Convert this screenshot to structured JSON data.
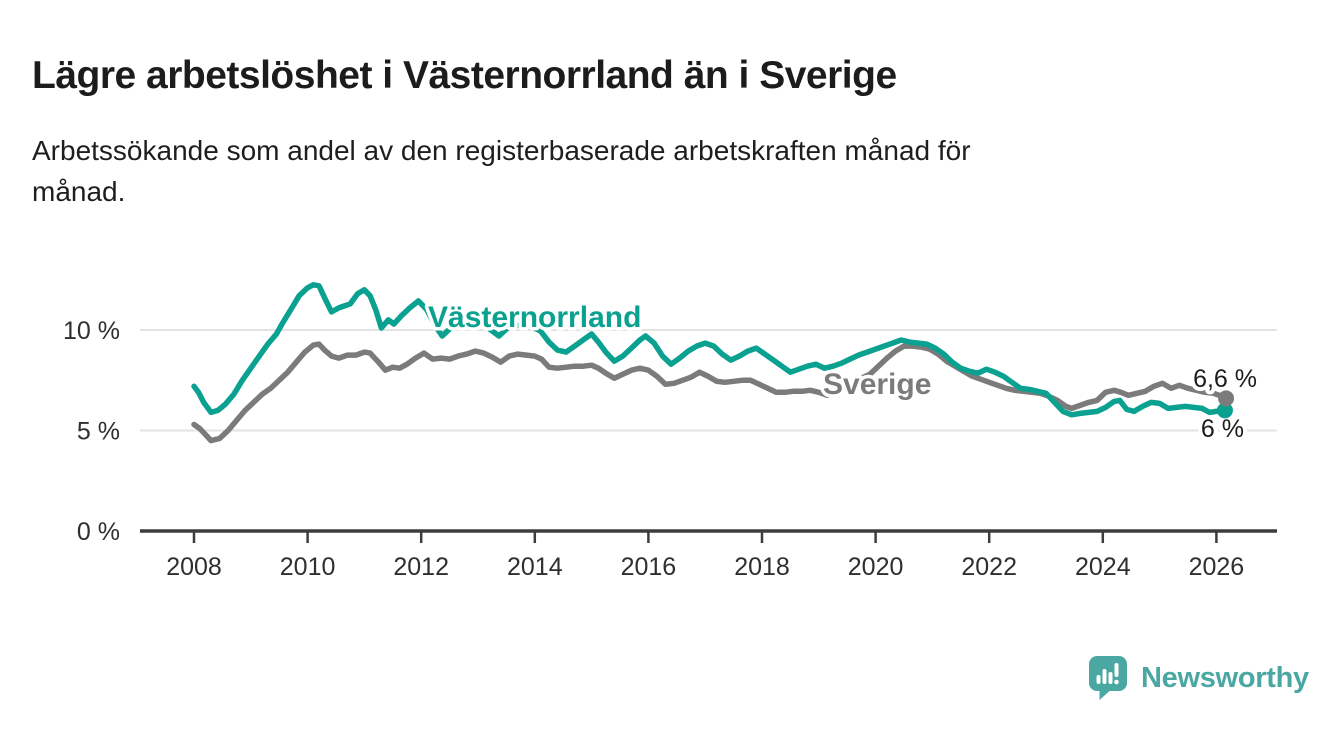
{
  "header": {
    "title": "Lägre arbetslöshet i Västernorrland än i Sverige",
    "subtitle_lines": [
      "Arbetssökande som andel av den registerbaserade arbetskraften månad för",
      "månad."
    ]
  },
  "chart_data": {
    "type": "line",
    "title": "Lägre arbetslöshet i Västernorrland än i Sverige",
    "xlabel": "",
    "ylabel": "",
    "unit": "%",
    "grid": "horizontal",
    "legend_position": "inline-labels",
    "x_range": [
      2007.1,
      2027.0
    ],
    "ylim": [
      0,
      12.5
    ],
    "x_ticks": [
      2008,
      2010,
      2012,
      2014,
      2016,
      2018,
      2020,
      2022,
      2024,
      2026
    ],
    "y_ticks": [
      {
        "value": 0,
        "label": "0 %"
      },
      {
        "value": 5,
        "label": "5 %"
      },
      {
        "value": 10,
        "label": "10 %"
      }
    ],
    "series": [
      {
        "id": "vasternorrland",
        "name": "Västernorrland",
        "color": "#0aa191",
        "end_label": "6 %",
        "end_value": 6.0,
        "points": [
          [
            2008.0,
            7.2
          ],
          [
            2008.08,
            6.9
          ],
          [
            2008.17,
            6.4
          ],
          [
            2008.3,
            5.9
          ],
          [
            2008.42,
            6.0
          ],
          [
            2008.55,
            6.3
          ],
          [
            2008.7,
            6.8
          ],
          [
            2008.85,
            7.5
          ],
          [
            2009.0,
            8.1
          ],
          [
            2009.15,
            8.7
          ],
          [
            2009.3,
            9.3
          ],
          [
            2009.45,
            9.8
          ],
          [
            2009.55,
            10.3
          ],
          [
            2009.7,
            11.0
          ],
          [
            2009.85,
            11.7
          ],
          [
            2010.0,
            12.1
          ],
          [
            2010.1,
            12.25
          ],
          [
            2010.2,
            12.2
          ],
          [
            2010.3,
            11.6
          ],
          [
            2010.42,
            10.9
          ],
          [
            2010.55,
            11.1
          ],
          [
            2010.65,
            11.2
          ],
          [
            2010.75,
            11.3
          ],
          [
            2010.88,
            11.8
          ],
          [
            2011.0,
            12.0
          ],
          [
            2011.1,
            11.7
          ],
          [
            2011.2,
            11.0
          ],
          [
            2011.3,
            10.1
          ],
          [
            2011.42,
            10.5
          ],
          [
            2011.52,
            10.3
          ],
          [
            2011.65,
            10.7
          ],
          [
            2011.8,
            11.1
          ],
          [
            2011.95,
            11.45
          ],
          [
            2012.1,
            11.0
          ],
          [
            2012.25,
            10.2
          ],
          [
            2012.37,
            9.7
          ],
          [
            2012.5,
            10.05
          ],
          [
            2012.65,
            10.3
          ],
          [
            2012.8,
            10.25
          ],
          [
            2012.95,
            10.35
          ],
          [
            2013.1,
            10.25
          ],
          [
            2013.25,
            9.95
          ],
          [
            2013.37,
            9.7
          ],
          [
            2013.5,
            10.05
          ],
          [
            2013.65,
            10.25
          ],
          [
            2013.8,
            10.2
          ],
          [
            2013.95,
            10.15
          ],
          [
            2014.1,
            9.95
          ],
          [
            2014.25,
            9.4
          ],
          [
            2014.4,
            9.0
          ],
          [
            2014.55,
            8.9
          ],
          [
            2014.7,
            9.2
          ],
          [
            2014.85,
            9.5
          ],
          [
            2015.0,
            9.8
          ],
          [
            2015.12,
            9.4
          ],
          [
            2015.25,
            8.9
          ],
          [
            2015.4,
            8.45
          ],
          [
            2015.55,
            8.7
          ],
          [
            2015.7,
            9.1
          ],
          [
            2015.85,
            9.5
          ],
          [
            2015.95,
            9.7
          ],
          [
            2016.1,
            9.35
          ],
          [
            2016.25,
            8.7
          ],
          [
            2016.4,
            8.3
          ],
          [
            2016.55,
            8.6
          ],
          [
            2016.7,
            8.95
          ],
          [
            2016.85,
            9.2
          ],
          [
            2017.0,
            9.35
          ],
          [
            2017.15,
            9.2
          ],
          [
            2017.3,
            8.8
          ],
          [
            2017.45,
            8.5
          ],
          [
            2017.6,
            8.7
          ],
          [
            2017.75,
            8.95
          ],
          [
            2017.9,
            9.1
          ],
          [
            2018.05,
            8.8
          ],
          [
            2018.2,
            8.5
          ],
          [
            2018.35,
            8.2
          ],
          [
            2018.5,
            7.9
          ],
          [
            2018.65,
            8.05
          ],
          [
            2018.8,
            8.2
          ],
          [
            2018.95,
            8.3
          ],
          [
            2019.1,
            8.1
          ],
          [
            2019.25,
            8.2
          ],
          [
            2019.4,
            8.35
          ],
          [
            2019.55,
            8.55
          ],
          [
            2019.7,
            8.75
          ],
          [
            2019.85,
            8.9
          ],
          [
            2020.0,
            9.05
          ],
          [
            2020.15,
            9.2
          ],
          [
            2020.3,
            9.35
          ],
          [
            2020.45,
            9.5
          ],
          [
            2020.6,
            9.4
          ],
          [
            2020.75,
            9.35
          ],
          [
            2020.9,
            9.3
          ],
          [
            2021.05,
            9.1
          ],
          [
            2021.2,
            8.8
          ],
          [
            2021.35,
            8.4
          ],
          [
            2021.5,
            8.1
          ],
          [
            2021.65,
            7.95
          ],
          [
            2021.8,
            7.85
          ],
          [
            2021.95,
            8.05
          ],
          [
            2022.1,
            7.9
          ],
          [
            2022.25,
            7.7
          ],
          [
            2022.4,
            7.4
          ],
          [
            2022.55,
            7.1
          ],
          [
            2022.7,
            7.05
          ],
          [
            2022.85,
            6.95
          ],
          [
            2023.0,
            6.85
          ],
          [
            2023.15,
            6.4
          ],
          [
            2023.3,
            5.95
          ],
          [
            2023.45,
            5.78
          ],
          [
            2023.6,
            5.85
          ],
          [
            2023.75,
            5.9
          ],
          [
            2023.9,
            5.95
          ],
          [
            2024.05,
            6.15
          ],
          [
            2024.2,
            6.45
          ],
          [
            2024.3,
            6.5
          ],
          [
            2024.42,
            6.05
          ],
          [
            2024.55,
            5.95
          ],
          [
            2024.7,
            6.2
          ],
          [
            2024.85,
            6.4
          ],
          [
            2025.0,
            6.35
          ],
          [
            2025.15,
            6.1
          ],
          [
            2025.3,
            6.15
          ],
          [
            2025.45,
            6.2
          ],
          [
            2025.6,
            6.15
          ],
          [
            2025.75,
            6.1
          ],
          [
            2025.88,
            5.9
          ],
          [
            2026.0,
            5.95
          ],
          [
            2026.15,
            6.0
          ]
        ]
      },
      {
        "id": "sverige",
        "name": "Sverige",
        "color": "#7b7b7b",
        "end_label": "6,6 %",
        "end_value": 6.6,
        "points": [
          [
            2008.0,
            5.3
          ],
          [
            2008.1,
            5.1
          ],
          [
            2008.2,
            4.8
          ],
          [
            2008.3,
            4.5
          ],
          [
            2008.45,
            4.6
          ],
          [
            2008.6,
            5.0
          ],
          [
            2008.75,
            5.5
          ],
          [
            2008.9,
            6.0
          ],
          [
            2009.05,
            6.4
          ],
          [
            2009.2,
            6.8
          ],
          [
            2009.35,
            7.1
          ],
          [
            2009.5,
            7.5
          ],
          [
            2009.65,
            7.9
          ],
          [
            2009.8,
            8.4
          ],
          [
            2009.95,
            8.9
          ],
          [
            2010.1,
            9.25
          ],
          [
            2010.2,
            9.3
          ],
          [
            2010.3,
            9.0
          ],
          [
            2010.42,
            8.7
          ],
          [
            2010.55,
            8.6
          ],
          [
            2010.7,
            8.75
          ],
          [
            2010.85,
            8.75
          ],
          [
            2011.0,
            8.9
          ],
          [
            2011.1,
            8.85
          ],
          [
            2011.25,
            8.4
          ],
          [
            2011.37,
            8.0
          ],
          [
            2011.5,
            8.15
          ],
          [
            2011.62,
            8.1
          ],
          [
            2011.75,
            8.3
          ],
          [
            2011.9,
            8.6
          ],
          [
            2012.05,
            8.85
          ],
          [
            2012.2,
            8.55
          ],
          [
            2012.35,
            8.6
          ],
          [
            2012.5,
            8.55
          ],
          [
            2012.65,
            8.7
          ],
          [
            2012.8,
            8.8
          ],
          [
            2012.95,
            8.95
          ],
          [
            2013.1,
            8.85
          ],
          [
            2013.25,
            8.65
          ],
          [
            2013.4,
            8.4
          ],
          [
            2013.55,
            8.7
          ],
          [
            2013.7,
            8.8
          ],
          [
            2013.85,
            8.75
          ],
          [
            2014.0,
            8.7
          ],
          [
            2014.12,
            8.55
          ],
          [
            2014.25,
            8.15
          ],
          [
            2014.4,
            8.1
          ],
          [
            2014.55,
            8.15
          ],
          [
            2014.7,
            8.2
          ],
          [
            2014.85,
            8.2
          ],
          [
            2015.0,
            8.25
          ],
          [
            2015.12,
            8.1
          ],
          [
            2015.25,
            7.85
          ],
          [
            2015.4,
            7.6
          ],
          [
            2015.55,
            7.8
          ],
          [
            2015.7,
            8.0
          ],
          [
            2015.85,
            8.1
          ],
          [
            2016.0,
            8.0
          ],
          [
            2016.15,
            7.7
          ],
          [
            2016.3,
            7.3
          ],
          [
            2016.45,
            7.35
          ],
          [
            2016.6,
            7.5
          ],
          [
            2016.75,
            7.65
          ],
          [
            2016.9,
            7.9
          ],
          [
            2017.05,
            7.7
          ],
          [
            2017.2,
            7.45
          ],
          [
            2017.35,
            7.4
          ],
          [
            2017.5,
            7.45
          ],
          [
            2017.65,
            7.5
          ],
          [
            2017.8,
            7.5
          ],
          [
            2017.95,
            7.3
          ],
          [
            2018.1,
            7.1
          ],
          [
            2018.25,
            6.9
          ],
          [
            2018.4,
            6.9
          ],
          [
            2018.55,
            6.95
          ],
          [
            2018.7,
            6.95
          ],
          [
            2018.85,
            7.0
          ],
          [
            2019.0,
            6.9
          ],
          [
            2019.15,
            6.75
          ],
          [
            2019.3,
            6.9
          ],
          [
            2019.45,
            7.1
          ],
          [
            2019.6,
            7.3
          ],
          [
            2019.75,
            7.6
          ],
          [
            2019.9,
            7.8
          ],
          [
            2020.05,
            8.2
          ],
          [
            2020.2,
            8.6
          ],
          [
            2020.35,
            8.95
          ],
          [
            2020.5,
            9.2
          ],
          [
            2020.65,
            9.2
          ],
          [
            2020.8,
            9.15
          ],
          [
            2020.95,
            9.05
          ],
          [
            2021.1,
            8.8
          ],
          [
            2021.25,
            8.45
          ],
          [
            2021.4,
            8.2
          ],
          [
            2021.55,
            7.95
          ],
          [
            2021.7,
            7.7
          ],
          [
            2021.85,
            7.55
          ],
          [
            2022.0,
            7.4
          ],
          [
            2022.15,
            7.25
          ],
          [
            2022.3,
            7.1
          ],
          [
            2022.45,
            7.0
          ],
          [
            2022.6,
            6.95
          ],
          [
            2022.75,
            6.9
          ],
          [
            2022.9,
            6.85
          ],
          [
            2023.05,
            6.7
          ],
          [
            2023.2,
            6.5
          ],
          [
            2023.35,
            6.2
          ],
          [
            2023.45,
            6.1
          ],
          [
            2023.6,
            6.25
          ],
          [
            2023.75,
            6.4
          ],
          [
            2023.9,
            6.5
          ],
          [
            2024.05,
            6.9
          ],
          [
            2024.2,
            7.0
          ],
          [
            2024.32,
            6.9
          ],
          [
            2024.45,
            6.75
          ],
          [
            2024.6,
            6.85
          ],
          [
            2024.75,
            6.95
          ],
          [
            2024.9,
            7.2
          ],
          [
            2025.05,
            7.35
          ],
          [
            2025.2,
            7.1
          ],
          [
            2025.35,
            7.25
          ],
          [
            2025.5,
            7.1
          ],
          [
            2025.65,
            7.0
          ],
          [
            2025.8,
            6.9
          ],
          [
            2025.95,
            6.85
          ],
          [
            2026.1,
            6.7
          ],
          [
            2026.17,
            6.6
          ]
        ]
      }
    ]
  },
  "footer": {
    "brand": "Newsworthy"
  }
}
